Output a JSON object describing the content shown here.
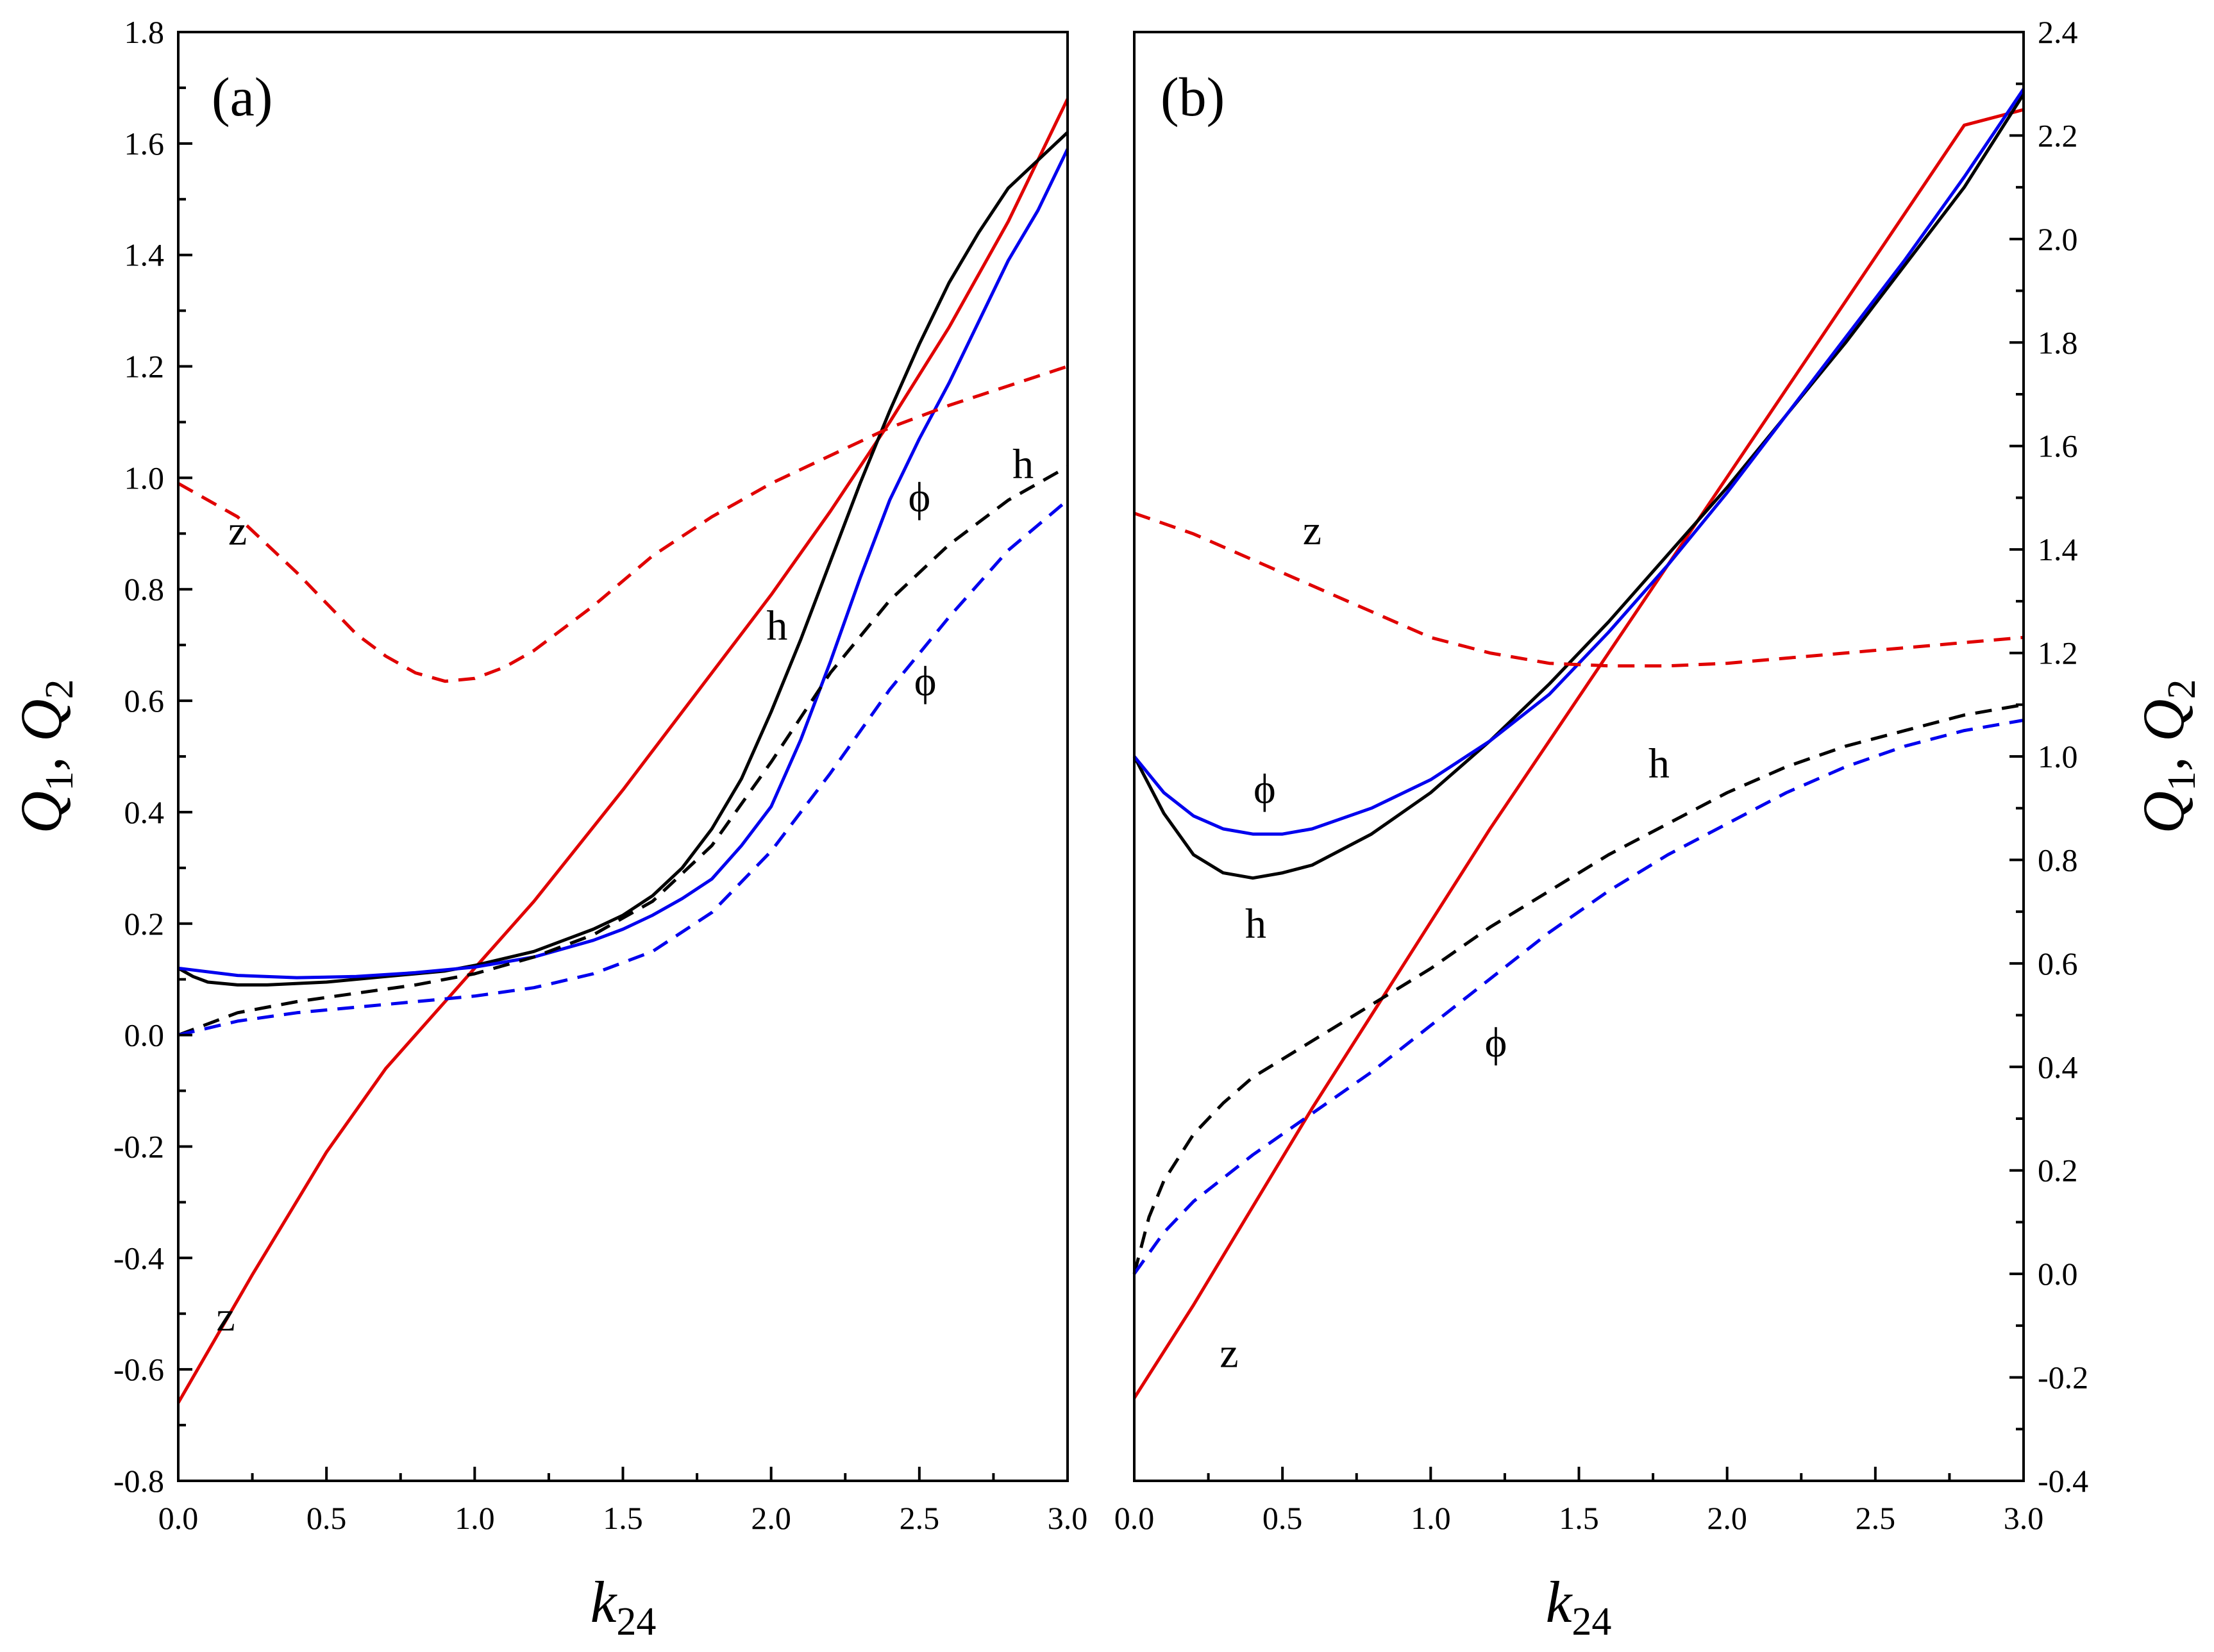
{
  "chart_data": [
    {
      "type": "line",
      "panel": "a",
      "title": "(a)",
      "xlabel": "k24",
      "ylabel": "Q1, Q2",
      "xlim": [
        0,
        3
      ],
      "ylim": [
        -0.8,
        1.8
      ],
      "x_ticks": [
        0,
        0.5,
        1,
        1.5,
        2,
        2.5,
        3
      ],
      "x_tick_labels": [
        "0.0",
        "0.5",
        "1.0",
        "1.5",
        "2.0",
        "2.5",
        "3.0"
      ],
      "y_ticks": [
        -0.8,
        -0.6,
        -0.4,
        -0.2,
        0,
        0.2,
        0.4,
        0.6,
        0.8,
        1,
        1.2,
        1.4,
        1.6,
        1.8
      ],
      "y_tick_labels": [
        "-0.8",
        "-0.6",
        "-0.4",
        "-0.2",
        "0.0",
        "0.2",
        "0.4",
        "0.6",
        "0.8",
        "1.0",
        "1.2",
        "1.4",
        "1.6",
        "1.8"
      ],
      "y_axis_side": "left",
      "series": [
        {
          "name": "Q1 z",
          "color": "#e00000",
          "style": "solid",
          "x": [
            0,
            0.25,
            0.5,
            0.7,
            0.9,
            1.0,
            1.2,
            1.5,
            1.8,
            2.0,
            2.2,
            2.4,
            2.6,
            2.8,
            3.0
          ],
          "values": [
            -0.66,
            -0.43,
            -0.21,
            -0.06,
            0.06,
            0.12,
            0.24,
            0.44,
            0.65,
            0.79,
            0.94,
            1.1,
            1.27,
            1.46,
            1.68
          ]
        },
        {
          "name": "Q1 h",
          "color": "#000000",
          "style": "solid",
          "x": [
            0,
            0.05,
            0.1,
            0.2,
            0.3,
            0.5,
            0.7,
            0.9,
            1.0,
            1.2,
            1.4,
            1.5,
            1.6,
            1.7,
            1.8,
            1.9,
            2.0,
            2.1,
            2.2,
            2.3,
            2.4,
            2.5,
            2.6,
            2.7,
            2.8,
            2.9,
            3.0
          ],
          "values": [
            0.12,
            0.105,
            0.095,
            0.09,
            0.09,
            0.095,
            0.105,
            0.115,
            0.125,
            0.15,
            0.19,
            0.215,
            0.25,
            0.3,
            0.37,
            0.46,
            0.58,
            0.71,
            0.85,
            0.99,
            1.12,
            1.24,
            1.35,
            1.44,
            1.52,
            1.57,
            1.62
          ]
        },
        {
          "name": "Q1 phi",
          "color": "#0000ee",
          "style": "solid",
          "x": [
            0,
            0.2,
            0.4,
            0.6,
            0.8,
            1.0,
            1.2,
            1.4,
            1.5,
            1.6,
            1.7,
            1.8,
            1.9,
            2.0,
            2.1,
            2.2,
            2.3,
            2.4,
            2.5,
            2.6,
            2.7,
            2.8,
            2.9,
            3.0
          ],
          "values": [
            0.12,
            0.107,
            0.103,
            0.105,
            0.112,
            0.122,
            0.14,
            0.17,
            0.19,
            0.215,
            0.245,
            0.28,
            0.34,
            0.41,
            0.53,
            0.67,
            0.82,
            0.96,
            1.07,
            1.17,
            1.28,
            1.39,
            1.48,
            1.59
          ]
        },
        {
          "name": "Q2 z",
          "color": "#e00000",
          "style": "dashed",
          "x": [
            0,
            0.2,
            0.4,
            0.6,
            0.7,
            0.8,
            0.9,
            1.0,
            1.1,
            1.2,
            1.4,
            1.6,
            1.8,
            2.0,
            2.2,
            2.4,
            2.6,
            2.8,
            3.0
          ],
          "values": [
            0.99,
            0.93,
            0.83,
            0.72,
            0.68,
            0.65,
            0.635,
            0.64,
            0.66,
            0.69,
            0.77,
            0.86,
            0.93,
            0.99,
            1.04,
            1.09,
            1.13,
            1.165,
            1.2
          ]
        },
        {
          "name": "Q2 h",
          "color": "#000000",
          "style": "dashed",
          "x": [
            0,
            0.2,
            0.4,
            0.6,
            0.8,
            1.0,
            1.2,
            1.4,
            1.6,
            1.8,
            2.0,
            2.2,
            2.4,
            2.6,
            2.8,
            3.0
          ],
          "values": [
            0.0,
            0.04,
            0.06,
            0.075,
            0.09,
            0.11,
            0.14,
            0.18,
            0.24,
            0.34,
            0.49,
            0.65,
            0.78,
            0.88,
            0.96,
            1.02
          ]
        },
        {
          "name": "Q2 phi",
          "color": "#0000ee",
          "style": "dashed",
          "x": [
            0,
            0.2,
            0.4,
            0.6,
            0.8,
            1.0,
            1.2,
            1.4,
            1.6,
            1.8,
            2.0,
            2.2,
            2.4,
            2.6,
            2.8,
            3.0
          ],
          "values": [
            0.0,
            0.025,
            0.04,
            0.05,
            0.06,
            0.07,
            0.085,
            0.11,
            0.15,
            0.22,
            0.33,
            0.47,
            0.62,
            0.75,
            0.87,
            0.96
          ]
        }
      ],
      "annotations": [
        {
          "text": "(a)",
          "role": "panel"
        },
        {
          "text": "z",
          "series": "Q2 z",
          "x": 0.2,
          "y": 0.88
        },
        {
          "text": "z",
          "series": "Q1 z",
          "x": 0.16,
          "y": -0.53
        },
        {
          "text": "h",
          "series": "Q1 h",
          "x": 2.02,
          "y": 0.71
        },
        {
          "text": "h",
          "series": "Q2 h",
          "x": 2.85,
          "y": 1.0
        },
        {
          "text": "ϕ",
          "series": "Q1 phi",
          "x": 2.5,
          "y": 0.94
        },
        {
          "text": "ϕ",
          "series": "Q2 phi",
          "x": 2.52,
          "y": 0.61
        }
      ]
    },
    {
      "type": "line",
      "panel": "b",
      "title": "(b)",
      "xlabel": "k24",
      "ylabel": "Q1, Q2",
      "xlim": [
        0,
        3
      ],
      "ylim": [
        -0.4,
        2.4
      ],
      "x_ticks": [
        0,
        0.5,
        1,
        1.5,
        2,
        2.5,
        3
      ],
      "x_tick_labels": [
        "0.0",
        "0.5",
        "1.0",
        "1.5",
        "2.0",
        "2.5",
        "3.0"
      ],
      "y_ticks": [
        -0.4,
        -0.2,
        0,
        0.2,
        0.4,
        0.6,
        0.8,
        1,
        1.2,
        1.4,
        1.6,
        1.8,
        2,
        2.2,
        2.4
      ],
      "y_tick_labels": [
        "-0.4",
        "-0.2",
        "0.0",
        "0.2",
        "0.4",
        "0.6",
        "0.8",
        "1.0",
        "1.2",
        "1.4",
        "1.6",
        "1.8",
        "2.0",
        "2.2",
        "2.4"
      ],
      "y_axis_side": "right",
      "series": [
        {
          "name": "Q1 z",
          "color": "#e00000",
          "style": "solid",
          "x": [
            0,
            0.2,
            0.4,
            0.6,
            0.8,
            1.0,
            1.2,
            1.4,
            1.6,
            1.8,
            2.0,
            2.2,
            2.4,
            2.6,
            2.8,
            3.0
          ],
          "values": [
            -0.24,
            -0.06,
            0.13,
            0.32,
            0.5,
            0.68,
            0.86,
            1.03,
            1.2,
            1.37,
            1.54,
            1.71,
            1.88,
            2.05,
            2.22,
            2.25
          ]
        },
        {
          "name": "Q1 h",
          "color": "#000000",
          "style": "solid",
          "x": [
            0,
            0.1,
            0.2,
            0.3,
            0.4,
            0.5,
            0.6,
            0.8,
            1.0,
            1.2,
            1.4,
            1.6,
            1.8,
            2.0,
            2.2,
            2.4,
            2.6,
            2.8,
            3.0
          ],
          "values": [
            1.0,
            0.89,
            0.81,
            0.775,
            0.765,
            0.775,
            0.79,
            0.85,
            0.93,
            1.03,
            1.14,
            1.26,
            1.39,
            1.52,
            1.66,
            1.8,
            1.95,
            2.1,
            2.28
          ]
        },
        {
          "name": "Q1 phi",
          "color": "#0000ee",
          "style": "solid",
          "x": [
            0,
            0.1,
            0.2,
            0.3,
            0.4,
            0.5,
            0.6,
            0.8,
            1.0,
            1.2,
            1.4,
            1.6,
            1.8,
            2.0,
            2.2,
            2.4,
            2.6,
            2.8,
            3.0
          ],
          "values": [
            1.0,
            0.93,
            0.885,
            0.86,
            0.85,
            0.85,
            0.86,
            0.9,
            0.955,
            1.03,
            1.12,
            1.24,
            1.37,
            1.51,
            1.66,
            1.81,
            1.96,
            2.12,
            2.29
          ]
        },
        {
          "name": "Q2 z",
          "color": "#e00000",
          "style": "dashed",
          "x": [
            0,
            0.2,
            0.4,
            0.6,
            0.8,
            1.0,
            1.2,
            1.4,
            1.6,
            1.8,
            2.0,
            2.2,
            2.4,
            2.6,
            2.8,
            3.0
          ],
          "values": [
            1.47,
            1.43,
            1.38,
            1.33,
            1.28,
            1.23,
            1.2,
            1.18,
            1.175,
            1.175,
            1.18,
            1.19,
            1.2,
            1.21,
            1.22,
            1.23
          ]
        },
        {
          "name": "Q2 h",
          "color": "#000000",
          "style": "dashed",
          "x": [
            0,
            0.05,
            0.1,
            0.2,
            0.3,
            0.4,
            0.6,
            0.8,
            1.0,
            1.2,
            1.4,
            1.6,
            1.8,
            2.0,
            2.2,
            2.4,
            2.6,
            2.8,
            3.0
          ],
          "values": [
            0.0,
            0.11,
            0.18,
            0.27,
            0.33,
            0.38,
            0.45,
            0.52,
            0.59,
            0.67,
            0.74,
            0.81,
            0.87,
            0.93,
            0.98,
            1.02,
            1.05,
            1.08,
            1.1
          ]
        },
        {
          "name": "Q2 phi",
          "color": "#0000ee",
          "style": "dashed",
          "x": [
            0,
            0.1,
            0.2,
            0.4,
            0.6,
            0.8,
            1.0,
            1.2,
            1.4,
            1.6,
            1.8,
            2.0,
            2.2,
            2.4,
            2.6,
            2.8,
            3.0
          ],
          "values": [
            0.0,
            0.08,
            0.14,
            0.23,
            0.31,
            0.39,
            0.48,
            0.57,
            0.66,
            0.74,
            0.81,
            0.87,
            0.93,
            0.98,
            1.02,
            1.05,
            1.07
          ]
        }
      ],
      "annotations": [
        {
          "text": "(b)",
          "role": "panel"
        },
        {
          "text": "z",
          "series": "Q2 z",
          "x": 0.6,
          "y": 1.41
        },
        {
          "text": "z",
          "series": "Q1 z",
          "x": 0.32,
          "y": -0.18
        },
        {
          "text": "h",
          "series": "Q1 h",
          "x": 0.41,
          "y": 0.65
        },
        {
          "text": "h",
          "series": "Q2 h",
          "x": 1.77,
          "y": 0.96
        },
        {
          "text": "ϕ",
          "series": "Q1 phi",
          "x": 0.44,
          "y": 0.91
        },
        {
          "text": "ϕ",
          "series": "Q2 phi",
          "x": 1.22,
          "y": 0.42
        }
      ]
    }
  ]
}
